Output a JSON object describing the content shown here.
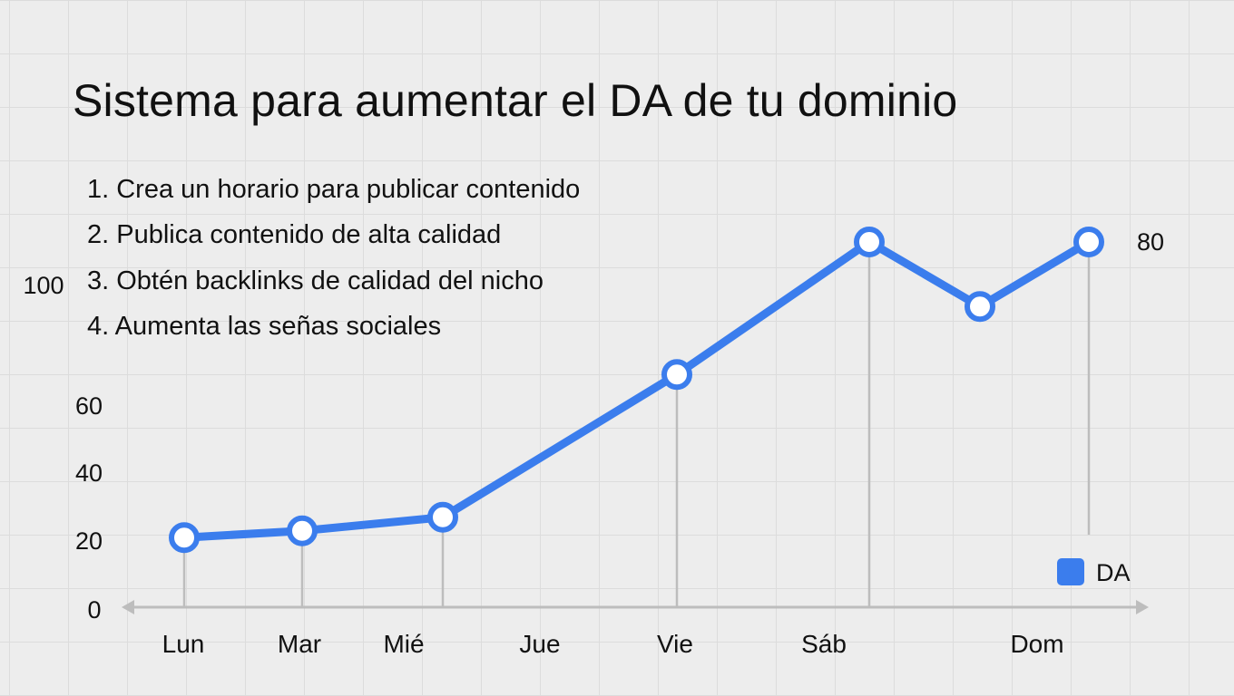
{
  "title": "Sistema para aumentar el DA de tu dominio",
  "steps": [
    "1. Crea un horario para publicar contenido",
    "2. Publica contenido de alta calidad",
    "3. Obtén backlinks de calidad del nicho",
    "4. Aumenta las señas sociales"
  ],
  "chart_data": {
    "type": "line",
    "title": "Sistema para aumentar el DA de tu dominio",
    "categories": [
      "Lun",
      "Mar",
      "Mié",
      "Jue",
      "Vie",
      "Sáb",
      "Dom"
    ],
    "y_tick_labels": [
      "0",
      "20",
      "40",
      "60",
      "100"
    ],
    "side_label": "80",
    "series": [
      {
        "name": "DA",
        "color": "#3b7ded",
        "points": [
          {
            "label": "Lun",
            "value": 21
          },
          {
            "label": "Mar",
            "value": 23
          },
          {
            "label": "Mié",
            "value": 27
          },
          {
            "label": "Vie",
            "value": 69
          },
          {
            "label": "Sáb",
            "value": 108
          },
          {
            "label": "",
            "value": 89
          },
          {
            "label": "Dom",
            "value": 108
          }
        ]
      }
    ],
    "legend": {
      "label": "DA",
      "position": "bottom-right"
    },
    "grid": true,
    "xlabel": "",
    "ylabel": ""
  }
}
